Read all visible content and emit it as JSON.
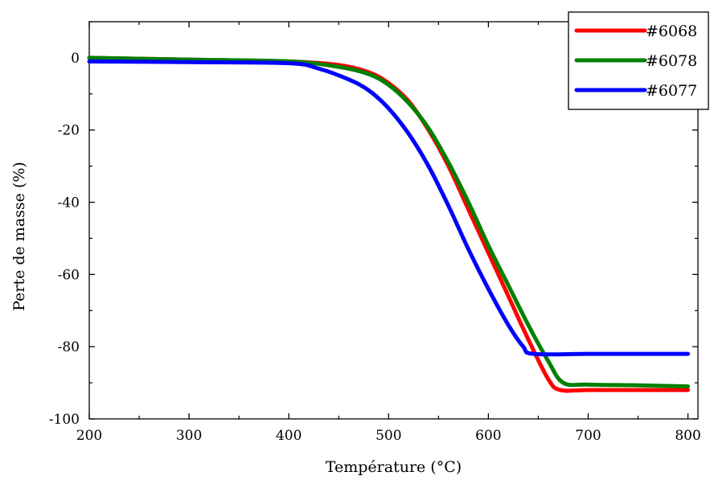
{
  "chart_data": {
    "type": "line",
    "title": "",
    "xlabel": "Température (°C)",
    "ylabel": "Perte de masse (%)",
    "xlim": [
      200,
      810
    ],
    "ylim": [
      -100,
      10
    ],
    "xticks": [
      200,
      300,
      400,
      500,
      600,
      700,
      800
    ],
    "yticks": [
      0,
      -20,
      -40,
      -60,
      -80,
      -100
    ],
    "grid": false,
    "legend_position": "top-right",
    "series": [
      {
        "name": "#6068",
        "color": "#ff0000",
        "points": [
          [
            200,
            0
          ],
          [
            300,
            -0.5
          ],
          [
            400,
            -1
          ],
          [
            450,
            -2
          ],
          [
            480,
            -4
          ],
          [
            500,
            -7
          ],
          [
            520,
            -12
          ],
          [
            540,
            -20
          ],
          [
            560,
            -30
          ],
          [
            580,
            -42
          ],
          [
            600,
            -54
          ],
          [
            620,
            -66
          ],
          [
            640,
            -78
          ],
          [
            660,
            -89
          ],
          [
            672,
            -92
          ],
          [
            700,
            -92
          ],
          [
            750,
            -92
          ],
          [
            800,
            -92
          ]
        ]
      },
      {
        "name": "#6078",
        "color": "#008000",
        "points": [
          [
            200,
            0
          ],
          [
            300,
            -0.5
          ],
          [
            400,
            -1
          ],
          [
            450,
            -2.5
          ],
          [
            480,
            -4.5
          ],
          [
            500,
            -7.5
          ],
          [
            520,
            -12.5
          ],
          [
            540,
            -19.5
          ],
          [
            560,
            -29
          ],
          [
            580,
            -40
          ],
          [
            600,
            -52
          ],
          [
            620,
            -63
          ],
          [
            640,
            -74
          ],
          [
            660,
            -84
          ],
          [
            675,
            -90
          ],
          [
            700,
            -90.5
          ],
          [
            750,
            -90.7
          ],
          [
            800,
            -91
          ]
        ]
      },
      {
        "name": "#6077",
        "color": "#0000ff",
        "points": [
          [
            200,
            -1
          ],
          [
            300,
            -1.2
          ],
          [
            400,
            -1.5
          ],
          [
            430,
            -3
          ],
          [
            460,
            -6
          ],
          [
            480,
            -9
          ],
          [
            500,
            -14
          ],
          [
            520,
            -21
          ],
          [
            540,
            -30
          ],
          [
            560,
            -41
          ],
          [
            580,
            -53
          ],
          [
            600,
            -64
          ],
          [
            620,
            -74
          ],
          [
            635,
            -80
          ],
          [
            645,
            -82
          ],
          [
            700,
            -82
          ],
          [
            750,
            -82
          ],
          [
            800,
            -82
          ]
        ]
      }
    ]
  }
}
